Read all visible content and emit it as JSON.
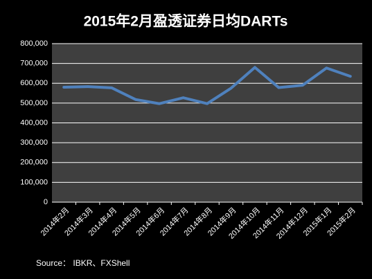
{
  "chart_data": {
    "type": "line",
    "title": "2015年2月盈透证券日均DARTs",
    "source": "Source： IBKR、FXShell",
    "categories": [
      "2014年2月",
      "2014年3月",
      "2014年4月",
      "2014年5月",
      "2014年6月",
      "2014年7月",
      "2014年8月",
      "2014年9月",
      "2014年10月",
      "2014年11月",
      "2014年12月",
      "2015年1月",
      "2015年2月"
    ],
    "series": [
      {
        "color": "#4f81bd",
        "values": [
          580000,
          583000,
          577000,
          518000,
          497000,
          527000,
          497000,
          575000,
          680000,
          578000,
          590000,
          677000,
          635000
        ]
      }
    ],
    "ylim": [
      0,
      800000
    ],
    "yticks": [
      0,
      {
        "value": 100000,
        "label": "100,000"
      },
      {
        "value": 200000,
        "label": "200,000"
      },
      {
        "value": 300000,
        "label": "300,000"
      },
      {
        "value": 400000,
        "label": "400,000"
      },
      {
        "value": 500000,
        "label": "500,000"
      },
      {
        "value": 600000,
        "label": "600,000"
      },
      {
        "value": 700000,
        "label": "700,000"
      },
      {
        "value": 800000,
        "label": "800,000"
      }
    ],
    "grid": true
  }
}
